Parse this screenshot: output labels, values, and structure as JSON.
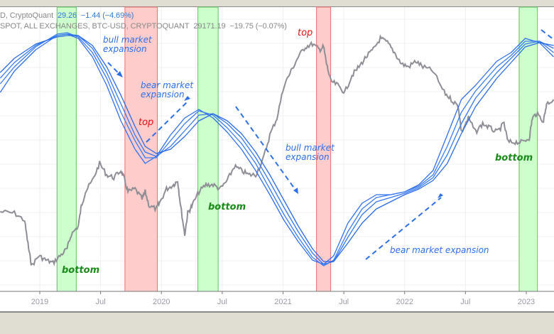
{
  "header": {
    "line1_name": "D, CryptoQuant",
    "line1_value": "29.26",
    "line1_change": "−1.44 (−4.69%)",
    "line2_name": "SPOT, ALL EXCHANGES, BTC-USD, CRYPTOQUANT",
    "line2_value": "29171.19",
    "line2_change": "−19.75 (−0.07%)"
  },
  "chart_data": {
    "type": "line",
    "x_unit": "months since Jan 2019",
    "y_unit": "relative (no axis labels shown)",
    "ylim": [
      0,
      100
    ],
    "xlim": [
      -3.9,
      50.7
    ],
    "x_ticks": [
      {
        "m": 0,
        "label": "2019"
      },
      {
        "m": 6,
        "label": "Jul"
      },
      {
        "m": 12,
        "label": "2020"
      },
      {
        "m": 18,
        "label": "Jul"
      },
      {
        "m": 24,
        "label": "2021"
      },
      {
        "m": 30,
        "label": "Jul"
      },
      {
        "m": 36,
        "label": "2022"
      },
      {
        "m": 42,
        "label": "Jul"
      },
      {
        "m": 48,
        "label": "2023"
      }
    ],
    "price_series": {
      "name": "BTC-USD price",
      "color": "#8e8e96",
      "x": [
        -3.9,
        -2.5,
        -1.5,
        -1.1,
        -0.8,
        -0.1,
        0.6,
        1.3,
        2.0,
        2.7,
        3.1,
        3.8,
        4.1,
        4.5,
        5.2,
        5.9,
        6.6,
        7.3,
        8.0,
        8.3,
        8.7,
        9.4,
        10.1,
        10.4,
        10.8,
        11.5,
        11.8,
        12.5,
        13.2,
        13.6,
        13.9,
        14.3,
        14.6,
        15.0,
        15.7,
        16.4,
        17.1,
        17.8,
        18.5,
        19.2,
        19.9,
        20.6,
        21.3,
        22.0,
        22.7,
        23.4,
        24.1,
        24.8,
        25.5,
        26.2,
        26.9,
        27.6,
        28.0,
        28.3,
        28.7,
        29.4,
        30.1,
        30.8,
        31.5,
        32.2,
        32.9,
        33.6,
        34.3,
        35.0,
        35.7,
        36.4,
        37.1,
        37.8,
        38.8,
        39.9,
        40.6,
        41.3,
        41.6,
        42.3,
        43.0,
        43.7,
        44.4,
        45.1,
        45.8,
        46.2,
        46.9,
        47.6,
        48.3,
        48.6,
        49.0,
        49.7,
        50.0,
        50.7
      ],
      "y": [
        28,
        27.5,
        25,
        15,
        9,
        12.5,
        11,
        10,
        12.5,
        15,
        20,
        23,
        30,
        35,
        39,
        45,
        41,
        40,
        42.5,
        40,
        35,
        36,
        32.5,
        35,
        30,
        29,
        31,
        36,
        37.5,
        39,
        30,
        20,
        27.5,
        30,
        35,
        37.5,
        37.5,
        36,
        39,
        44,
        42.5,
        41,
        41,
        46,
        55,
        61,
        72.5,
        77.5,
        82.5,
        86,
        87,
        85,
        86,
        80,
        74,
        72.5,
        70,
        76,
        79,
        82.5,
        85,
        89,
        87.5,
        84,
        80,
        79,
        81,
        79,
        77.5,
        70,
        67.5,
        65,
        56,
        61,
        56,
        59,
        57.5,
        56,
        59,
        52.5,
        52.5,
        52.5,
        54,
        61,
        62.5,
        60,
        66,
        67.5
      ]
    },
    "ma_series": [
      {
        "name": "MA 1",
        "color": "#2f6ff0",
        "y": [
          70,
          77.5,
          85,
          90,
          90.5,
          89,
          82.5,
          72.5,
          60,
          50,
          45,
          47.5,
          55,
          61,
          64,
          61,
          56,
          50,
          42.5,
          34,
          25,
          17.5,
          11,
          9.5,
          12.5,
          24,
          31,
          34,
          34,
          35,
          37.5,
          42.5,
          55,
          67.5,
          72.5,
          81,
          84,
          89,
          87.5,
          82.5
        ]
      },
      {
        "name": "MA 2",
        "color": "#3b7cf2",
        "y": [
          73,
          79,
          86,
          90.5,
          91,
          89.5,
          84,
          75,
          63,
          53,
          47,
          47,
          53,
          59,
          63.5,
          62,
          57.5,
          52,
          45,
          36,
          27,
          19,
          12,
          9,
          11,
          21,
          29,
          33,
          34,
          35,
          37,
          41,
          51,
          63,
          70.5,
          79,
          83,
          88,
          88,
          84
        ]
      },
      {
        "name": "MA 3",
        "color": "#3578ef",
        "y": [
          75,
          80.5,
          86.5,
          90,
          90.5,
          90,
          85.5,
          77,
          66,
          55,
          49,
          47.5,
          51,
          56.5,
          62,
          62.5,
          59,
          54,
          47,
          38.5,
          29.5,
          21,
          13.5,
          9.5,
          10.5,
          19,
          27,
          31.5,
          33,
          34.5,
          36.5,
          40,
          48,
          59,
          68,
          77,
          82,
          87,
          88,
          85.5
        ]
      },
      {
        "name": "MA 4",
        "color": "#2a6ae8",
        "y": [
          77,
          82,
          87,
          89.5,
          90,
          90,
          86.5,
          79,
          69,
          58,
          51,
          48.5,
          50,
          54.5,
          60,
          62.5,
          60,
          55.5,
          49,
          41,
          32,
          23,
          15,
          10.5,
          10.5,
          17,
          24,
          29,
          31.5,
          34,
          36,
          39,
          45,
          55.5,
          65,
          75,
          80.5,
          86,
          87.5,
          86.5
        ]
      }
    ],
    "ma_x": [
      -3.9,
      -2.5,
      -0.4,
      1.7,
      2.7,
      3.8,
      5.2,
      6.6,
      8.0,
      9.4,
      10.4,
      11.5,
      12.9,
      14.3,
      15.7,
      17.1,
      18.5,
      19.9,
      21.3,
      22.7,
      24.1,
      25.5,
      26.9,
      28.0,
      29.0,
      30.4,
      31.8,
      33.2,
      34.6,
      36.0,
      37.4,
      38.8,
      40.2,
      41.6,
      43.0,
      45.1,
      46.5,
      47.9,
      49.3,
      50.7
    ],
    "regions": [
      {
        "type": "bottom",
        "from": 1.7,
        "to": 3.6,
        "color": "#ccffcc",
        "edge": "#5cc35c"
      },
      {
        "type": "top",
        "from": 8.4,
        "to": 11.6,
        "color": "#ffcccc",
        "edge": "#f07070"
      },
      {
        "type": "bottom",
        "from": 15.6,
        "to": 17.6,
        "color": "#ccffcc",
        "edge": "#5cc35c"
      },
      {
        "type": "top",
        "from": 27.3,
        "to": 28.7,
        "color": "#ffcccc",
        "edge": "#f07070"
      },
      {
        "type": "bottom",
        "from": 47.3,
        "to": 49.1,
        "color": "#ccffcc",
        "edge": "#5cc35c"
      }
    ],
    "annotations": {
      "bull1_l1": "bull market",
      "bull1_l2": "expansion",
      "bear1_l1": "bear market",
      "bear1_l2": "expansion",
      "bull2_l1": "bull market",
      "bull2_l2": "expansion",
      "bear2": "bear market expansion",
      "top1": "top",
      "top2": "top",
      "bottom1": "bottom",
      "bottom2": "bottom",
      "bottom3": "bottom"
    }
  }
}
